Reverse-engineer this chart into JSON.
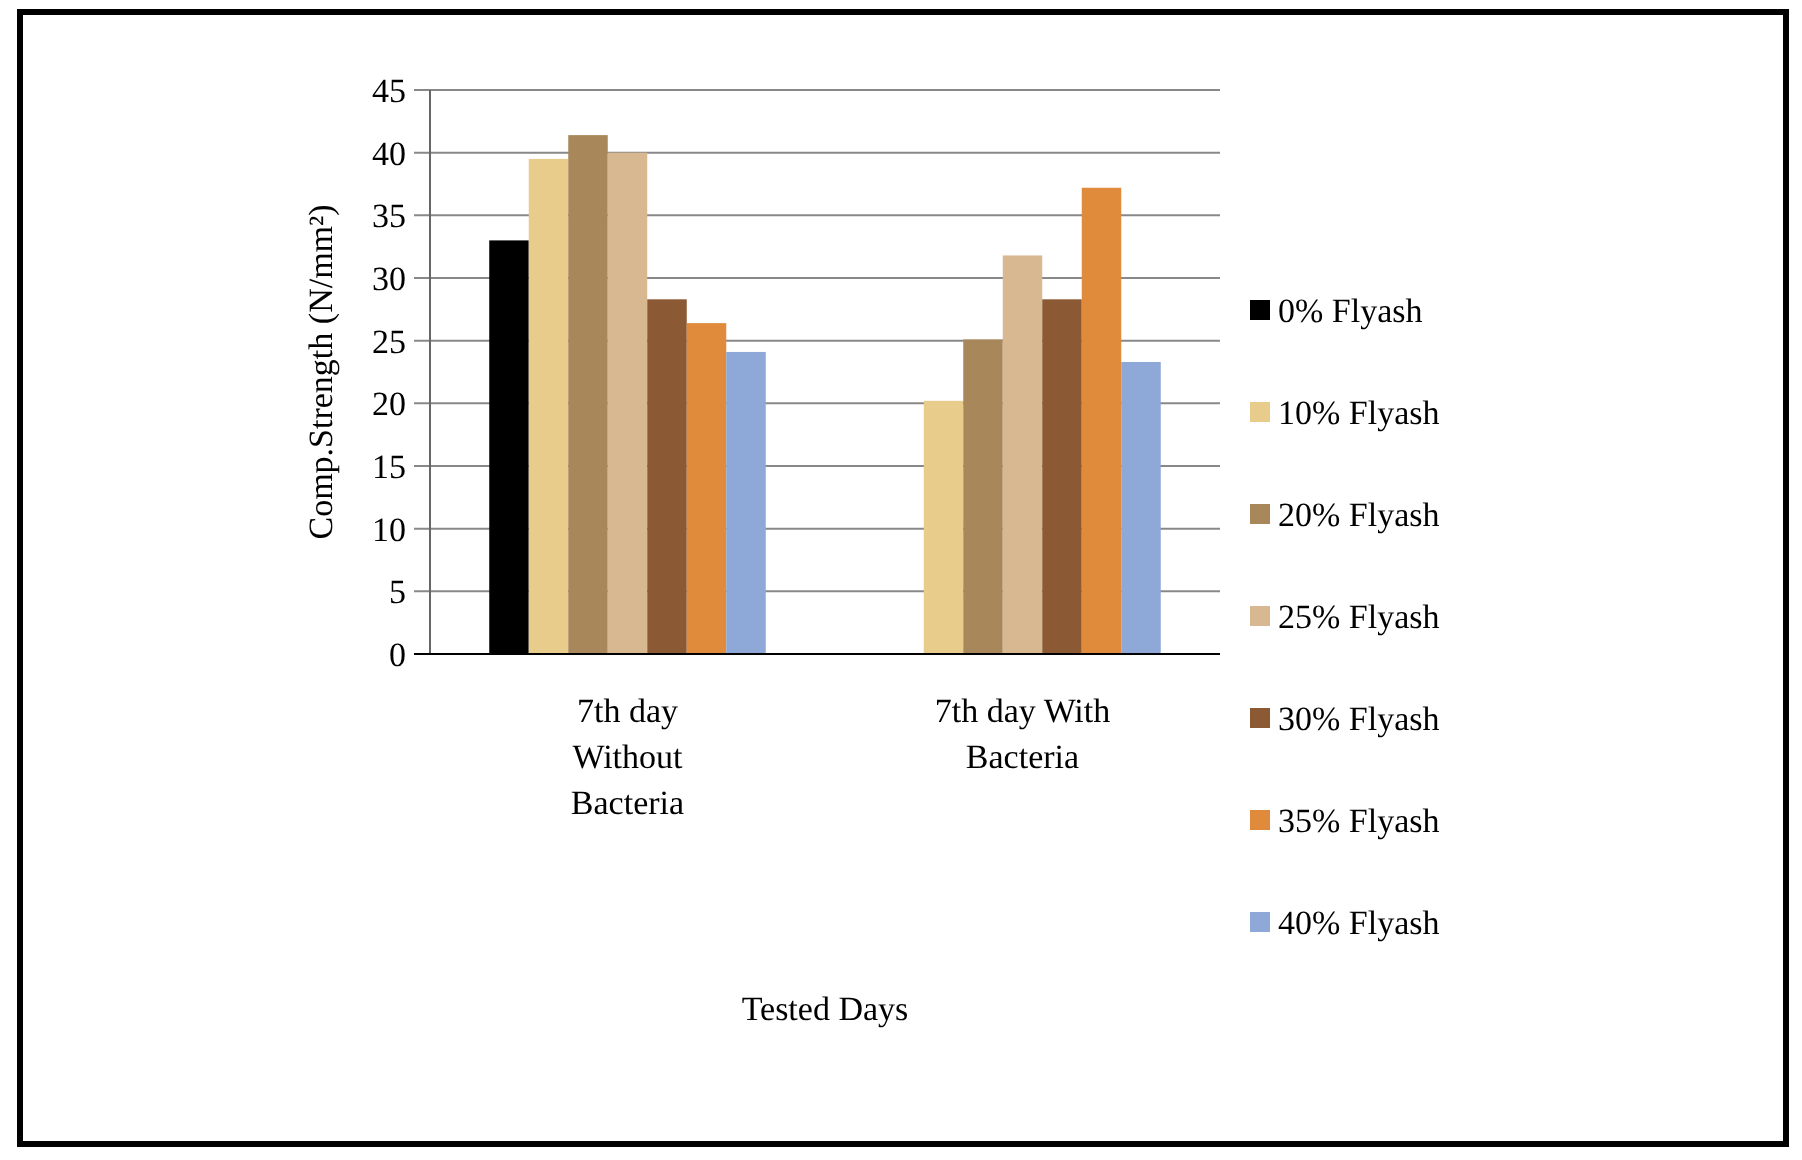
{
  "chart_data": {
    "type": "bar",
    "xlabel": "Tested Days",
    "ylabel": "Comp.Strength (N/mm²)",
    "categories": [
      "7th day Without Bacteria",
      "7th day With Bacteria"
    ],
    "series": [
      {
        "name": "0% Flyash",
        "color": "#000000",
        "values": [
          33.0,
          null
        ]
      },
      {
        "name": "10% Flyash",
        "color": "#e8cc8c",
        "values": [
          39.5,
          20.2
        ]
      },
      {
        "name": "20% Flyash",
        "color": "#a8875a",
        "values": [
          41.4,
          25.1
        ]
      },
      {
        "name": "25% Flyash",
        "color": "#d8b890",
        "values": [
          40.0,
          31.8
        ]
      },
      {
        "name": "30% Flyash",
        "color": "#8b5a34",
        "values": [
          28.3,
          28.3
        ]
      },
      {
        "name": "35% Flyash",
        "color": "#e08a3c",
        "values": [
          26.4,
          37.2
        ]
      },
      {
        "name": "40% Flyash",
        "color": "#8ea8d8",
        "values": [
          24.1,
          23.3
        ]
      }
    ],
    "ylim": [
      0,
      45
    ],
    "yticks": [
      0,
      5,
      10,
      15,
      20,
      25,
      30,
      35,
      40,
      45
    ],
    "grid": "y",
    "legend": "right"
  }
}
